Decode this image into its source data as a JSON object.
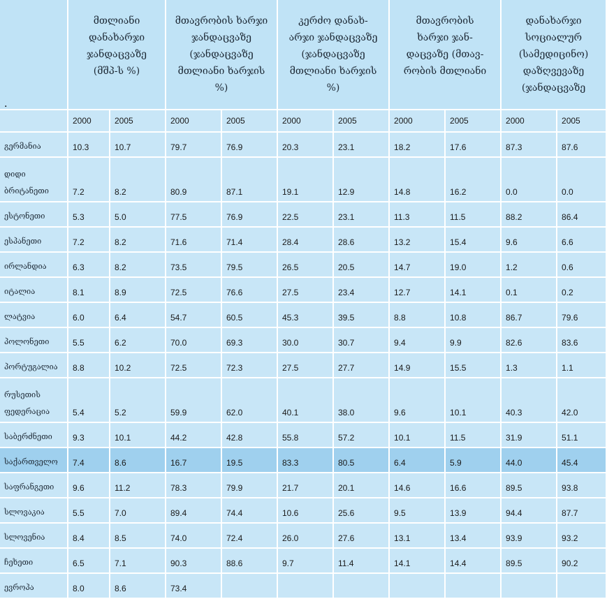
{
  "headers": [
    "მთლიანი\nდანახარჯი\nჯანდაცვაზე\n(მშპ-ს %)",
    "მთავრობის ხარჯი\nჯანდაცვაზე\n(ჯანდაცვაზე\nმთლიანი ხარჯის\n%)",
    "კერძო დანახ-\nარჯი ჯანდაცვაზე\n(ჯანდაცვაზე\nმთლიანი ხარჯის\n%)",
    "მთავრობის\nხარჯი ჯან-\nდაცვაზე (მთავ-\nრობის მთლიანი",
    "დანახარჯი\nსოციალურ\n(სამედიცინო)\nდაზღვევაზე\n(ჯანდაცვაზე"
  ],
  "header_corner_mark": ".",
  "years": [
    "2000",
    "2005",
    "2000",
    "2005",
    "2000",
    "2005",
    "2000",
    "2005",
    "2000",
    "2005"
  ],
  "rows": [
    {
      "country": "გერმანია",
      "values": [
        "10.3",
        "10.7",
        "79.7",
        "76.9",
        "20.3",
        "23.1",
        "18.2",
        "17.6",
        "87.3",
        "87.6"
      ]
    },
    {
      "country": "დიდი\nბრიტანეთი",
      "values": [
        "7.2",
        "8.2",
        "80.9",
        "87.1",
        "19.1",
        "12.9",
        "14.8",
        "16.2",
        "0.0",
        "0.0"
      ]
    },
    {
      "country": "ესტონეთი",
      "values": [
        "5.3",
        "5.0",
        "77.5",
        "76.9",
        "22.5",
        "23.1",
        "11.3",
        "11.5",
        "88.2",
        "86.4"
      ]
    },
    {
      "country": "ესპანეთი",
      "values": [
        "7.2",
        "8.2",
        "71.6",
        "71.4",
        "28.4",
        "28.6",
        "13.2",
        "15.4",
        "9.6",
        "6.6"
      ]
    },
    {
      "country": "ირლანდია",
      "values": [
        "6.3",
        "8.2",
        "73.5",
        "79.5",
        "26.5",
        "20.5",
        "14.7",
        "19.0",
        "1.2",
        "0.6"
      ]
    },
    {
      "country": "იტალია",
      "values": [
        "8.1",
        "8.9",
        "72.5",
        "76.6",
        "27.5",
        "23.4",
        "12.7",
        "14.1",
        "0.1",
        "0.2"
      ]
    },
    {
      "country": "ლატვია",
      "values": [
        "6.0",
        "6.4",
        "54.7",
        "60.5",
        "45.3",
        "39.5",
        "8.8",
        "10.8",
        "86.7",
        "79.6"
      ]
    },
    {
      "country": "პოლონეთი",
      "values": [
        "5.5",
        "6.2",
        "70.0",
        "69.3",
        "30.0",
        "30.7",
        "9.4",
        "9.9",
        "82.6",
        "83.6"
      ]
    },
    {
      "country": "პორტუგალია",
      "values": [
        "8.8",
        "10.2",
        "72.5",
        "72.3",
        "27.5",
        "27.7",
        "14.9",
        "15.5",
        "1.3",
        "1.1"
      ]
    },
    {
      "country": "რუსეთის\nფედერაცია",
      "values": [
        "5.4",
        "5.2",
        "59.9",
        "62.0",
        "40.1",
        "38.0",
        "9.6",
        "10.1",
        "40.3",
        "42.0"
      ]
    },
    {
      "country": "საბერძნეთი",
      "values": [
        "9.3",
        "10.1",
        "44.2",
        "42.8",
        "55.8",
        "57.2",
        "10.1",
        "11.5",
        "31.9",
        "51.1"
      ]
    },
    {
      "country": "საქართველო",
      "values": [
        "7.4",
        "8.6",
        "16.7",
        "19.5",
        "83.3",
        "80.5",
        "6.4",
        "5.9",
        "44.0",
        "45.4"
      ]
    },
    {
      "country": "საფრანგეთი",
      "values": [
        "9.6",
        "11.2",
        "78.3",
        "79.9",
        "21.7",
        "20.1",
        "14.6",
        "16.6",
        "89.5",
        "93.8"
      ]
    },
    {
      "country": "სლოვაკია",
      "values": [
        "5.5",
        "7.0",
        "89.4",
        "74.4",
        "10.6",
        "25.6",
        "9.5",
        "13.9",
        "94.4",
        "87.7"
      ]
    },
    {
      "country": "სლოვენია",
      "values": [
        "8.4",
        "8.5",
        "74.0",
        "72.4",
        "26.0",
        "27.6",
        "13.1",
        "13.4",
        "93.9",
        "93.2"
      ]
    },
    {
      "country": "ჩეხეთი",
      "values": [
        "6.5",
        "7.1",
        "90.3",
        "88.6",
        "9.7",
        "11.4",
        "14.1",
        "14.4",
        "89.5",
        "90.2"
      ]
    },
    {
      "country": "ევროპა",
      "values": [
        "8.0",
        "8.6",
        "73.4",
        "",
        "",
        "",
        "",
        "",
        "",
        ""
      ]
    }
  ],
  "colors": {
    "header_bg": "#c0e3f6",
    "cell_bg": "#c8e6f7",
    "highlight_bg": "#9fd0ee",
    "grid": "#ffffff"
  }
}
